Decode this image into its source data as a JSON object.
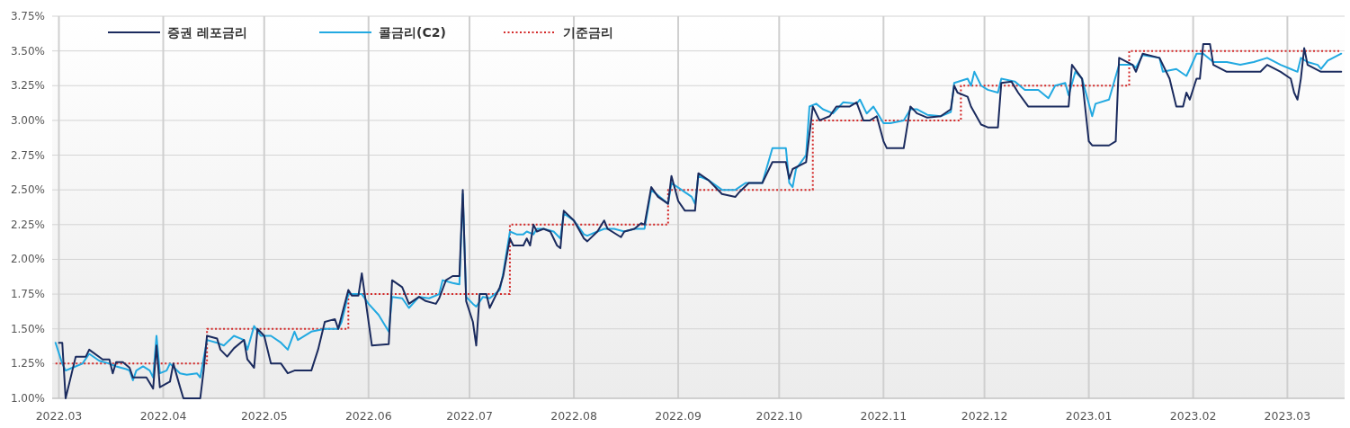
{
  "chart_data": {
    "type": "line",
    "grid": true,
    "legend": "top left",
    "xlim": [
      "2022-02-27",
      "2023-03-18"
    ],
    "ylim": [
      1,
      3.75
    ],
    "xticks": [
      {
        "value": "2022-03-01",
        "label": "2022.03"
      },
      {
        "value": "2022-04-01",
        "label": "2022.04"
      },
      {
        "value": "2022-05-01",
        "label": "2022.05"
      },
      {
        "value": "2022-06-01",
        "label": "2022.06"
      },
      {
        "value": "2022-07-01",
        "label": "2022.07"
      },
      {
        "value": "2022-08-01",
        "label": "2022.08"
      },
      {
        "value": "2022-09-01",
        "label": "2022.09"
      },
      {
        "value": "2022-10-01",
        "label": "2022.10"
      },
      {
        "value": "2022-11-01",
        "label": "2022.11"
      },
      {
        "value": "2022-12-01",
        "label": "2022.12"
      },
      {
        "value": "2023-01-01",
        "label": "2023.01"
      },
      {
        "value": "2023-02-01",
        "label": "2023.02"
      },
      {
        "value": "2023-03-01",
        "label": "2023.03"
      }
    ],
    "yticks": [
      {
        "value": 1,
        "label": "1.00%"
      },
      {
        "value": 1.25,
        "label": "1.25%"
      },
      {
        "value": 1.5,
        "label": "1.50%"
      },
      {
        "value": 1.75,
        "label": "1.75%"
      },
      {
        "value": 2,
        "label": "2.00%"
      },
      {
        "value": 2.25,
        "label": "2.25%"
      },
      {
        "value": 2.5,
        "label": "2.50%"
      },
      {
        "value": 2.75,
        "label": "2.75%"
      },
      {
        "value": 3,
        "label": "3.00%"
      },
      {
        "value": 3.25,
        "label": "3.25%"
      },
      {
        "value": 3.5,
        "label": "3.50%"
      },
      {
        "value": 3.75,
        "label": "3.75%"
      }
    ],
    "series": [
      {
        "name": "증권 레포금리",
        "color": "#1b2b5e",
        "line_style": "solid",
        "x": [
          "2022-03-01",
          "2022-03-02",
          "2022-03-03",
          "2022-03-06",
          "2022-03-09",
          "2022-03-10",
          "2022-03-14",
          "2022-03-16",
          "2022-03-17",
          "2022-03-18",
          "2022-03-20",
          "2022-03-22",
          "2022-03-23",
          "2022-03-27",
          "2022-03-29",
          "2022-03-30",
          "2022-03-31",
          "2022-04-03",
          "2022-04-04",
          "2022-04-06",
          "2022-04-07",
          "2022-04-12",
          "2022-04-13",
          "2022-04-14",
          "2022-04-17",
          "2022-04-18",
          "2022-04-20",
          "2022-04-22",
          "2022-04-25",
          "2022-04-26",
          "2022-04-28",
          "2022-04-29",
          "2022-05-01",
          "2022-05-03",
          "2022-05-06",
          "2022-05-08",
          "2022-05-10",
          "2022-05-15",
          "2022-05-17",
          "2022-05-19",
          "2022-05-22",
          "2022-05-23",
          "2022-05-26",
          "2022-05-27",
          "2022-05-29",
          "2022-05-30",
          "2022-06-02",
          "2022-06-07",
          "2022-06-08",
          "2022-06-11",
          "2022-06-13",
          "2022-06-16",
          "2022-06-18",
          "2022-06-21",
          "2022-06-22",
          "2022-06-24",
          "2022-06-26",
          "2022-06-28",
          "2022-06-29",
          "2022-06-30",
          "2022-07-02",
          "2022-07-03",
          "2022-07-04",
          "2022-07-06",
          "2022-07-07",
          "2022-07-10",
          "2022-07-11",
          "2022-07-13",
          "2022-07-14",
          "2022-07-17",
          "2022-07-18",
          "2022-07-19",
          "2022-07-20",
          "2022-07-21",
          "2022-07-23",
          "2022-07-25",
          "2022-07-27",
          "2022-07-28",
          "2022-07-29",
          "2022-08-01",
          "2022-08-04",
          "2022-08-05",
          "2022-08-08",
          "2022-08-10",
          "2022-08-11",
          "2022-08-15",
          "2022-08-16",
          "2022-08-19",
          "2022-08-21",
          "2022-08-22",
          "2022-08-24",
          "2022-08-26",
          "2022-08-29",
          "2022-08-30",
          "2022-09-01",
          "2022-09-03",
          "2022-09-06",
          "2022-09-07",
          "2022-09-10",
          "2022-09-14",
          "2022-09-18",
          "2022-09-19",
          "2022-09-22",
          "2022-09-26",
          "2022-09-29",
          "2022-10-03",
          "2022-10-04",
          "2022-10-05",
          "2022-10-09",
          "2022-10-11",
          "2022-10-13",
          "2022-10-16",
          "2022-10-18",
          "2022-10-22",
          "2022-10-24",
          "2022-10-26",
          "2022-10-28",
          "2022-10-30",
          "2022-11-01",
          "2022-11-02",
          "2022-11-07",
          "2022-11-09",
          "2022-11-11",
          "2022-11-14",
          "2022-11-18",
          "2022-11-21",
          "2022-11-22",
          "2022-11-23",
          "2022-11-26",
          "2022-11-27",
          "2022-11-30",
          "2022-12-02",
          "2022-12-05",
          "2022-12-06",
          "2022-12-09",
          "2022-12-11",
          "2022-12-14",
          "2022-12-26",
          "2022-12-27",
          "2022-12-30",
          "2023-01-01",
          "2023-01-02",
          "2023-01-07",
          "2023-01-09",
          "2023-01-10",
          "2023-01-14",
          "2023-01-15",
          "2023-01-17",
          "2023-01-22",
          "2023-01-25",
          "2023-01-27",
          "2023-01-29",
          "2023-01-30",
          "2023-01-31",
          "2023-02-02",
          "2023-02-03",
          "2023-02-04",
          "2023-02-06",
          "2023-02-07",
          "2023-02-11",
          "2023-02-21",
          "2023-02-23",
          "2023-02-27",
          "2023-03-02",
          "2023-03-03",
          "2023-03-04",
          "2023-03-05",
          "2023-03-06",
          "2023-03-07",
          "2023-03-11",
          "2023-03-17"
        ],
        "values": [
          1.4,
          1.4,
          1.0,
          1.3,
          1.3,
          1.35,
          1.28,
          1.28,
          1.18,
          1.26,
          1.26,
          1.22,
          1.15,
          1.15,
          1.07,
          1.38,
          1.08,
          1.12,
          1.25,
          1.08,
          1.0,
          1.0,
          1.2,
          1.45,
          1.43,
          1.35,
          1.3,
          1.36,
          1.42,
          1.28,
          1.22,
          1.5,
          1.45,
          1.25,
          1.25,
          1.18,
          1.2,
          1.2,
          1.35,
          1.55,
          1.57,
          1.5,
          1.78,
          1.74,
          1.74,
          1.9,
          1.38,
          1.39,
          1.85,
          1.8,
          1.68,
          1.73,
          1.7,
          1.68,
          1.72,
          1.85,
          1.88,
          1.88,
          2.5,
          1.7,
          1.55,
          1.38,
          1.75,
          1.75,
          1.65,
          1.8,
          1.88,
          2.15,
          2.1,
          2.1,
          2.15,
          2.1,
          2.25,
          2.2,
          2.22,
          2.2,
          2.1,
          2.08,
          2.35,
          2.28,
          2.15,
          2.13,
          2.2,
          2.28,
          2.22,
          2.16,
          2.2,
          2.22,
          2.26,
          2.25,
          2.52,
          2.45,
          2.4,
          2.6,
          2.42,
          2.35,
          2.35,
          2.62,
          2.57,
          2.47,
          2.45,
          2.48,
          2.55,
          2.55,
          2.7,
          2.7,
          2.58,
          2.65,
          2.7,
          3.1,
          3.0,
          3.03,
          3.1,
          3.1,
          3.13,
          3.0,
          3.0,
          3.03,
          2.85,
          2.8,
          2.8,
          3.1,
          3.05,
          3.02,
          3.03,
          3.08,
          3.25,
          3.2,
          3.17,
          3.1,
          2.97,
          2.95,
          2.95,
          3.27,
          3.28,
          3.2,
          3.1,
          3.1,
          3.4,
          3.3,
          2.85,
          2.82,
          2.82,
          2.85,
          3.45,
          3.4,
          3.35,
          3.48,
          3.45,
          3.3,
          3.1,
          3.1,
          3.2,
          3.15,
          3.3,
          3.3,
          3.55,
          3.55,
          3.4,
          3.35,
          3.35,
          3.4,
          3.35,
          3.3,
          3.2,
          3.15,
          3.3,
          3.52,
          3.4,
          3.35,
          3.35
        ]
      },
      {
        "name": "콜금리(C2)",
        "color": "#22a9e1",
        "line_style": "solid",
        "x": [
          "2022-02-28",
          "2022-03-02",
          "2022-03-03",
          "2022-03-05",
          "2022-03-08",
          "2022-03-10",
          "2022-03-13",
          "2022-03-16",
          "2022-03-18",
          "2022-03-21",
          "2022-03-22",
          "2022-03-23",
          "2022-03-24",
          "2022-03-26",
          "2022-03-28",
          "2022-03-29",
          "2022-03-30",
          "2022-03-31",
          "2022-04-02",
          "2022-04-03",
          "2022-04-06",
          "2022-04-08",
          "2022-04-11",
          "2022-04-12",
          "2022-04-14",
          "2022-04-17",
          "2022-04-19",
          "2022-04-22",
          "2022-04-25",
          "2022-04-26",
          "2022-04-28",
          "2022-04-30",
          "2022-05-03",
          "2022-05-06",
          "2022-05-08",
          "2022-05-10",
          "2022-05-11",
          "2022-05-15",
          "2022-05-19",
          "2022-05-23",
          "2022-05-24",
          "2022-05-26",
          "2022-05-27",
          "2022-05-30",
          "2022-06-01",
          "2022-06-04",
          "2022-06-07",
          "2022-06-08",
          "2022-06-11",
          "2022-06-13",
          "2022-06-16",
          "2022-06-19",
          "2022-06-22",
          "2022-06-23",
          "2022-06-26",
          "2022-06-28",
          "2022-06-29",
          "2022-06-30",
          "2022-07-02",
          "2022-07-03",
          "2022-07-05",
          "2022-07-07",
          "2022-07-10",
          "2022-07-11",
          "2022-07-13",
          "2022-07-15",
          "2022-07-17",
          "2022-07-18",
          "2022-07-20",
          "2022-07-21",
          "2022-07-23",
          "2022-07-26",
          "2022-07-28",
          "2022-07-29",
          "2022-08-01",
          "2022-08-04",
          "2022-08-05",
          "2022-08-08",
          "2022-08-10",
          "2022-08-13",
          "2022-08-16",
          "2022-08-19",
          "2022-08-22",
          "2022-08-24",
          "2022-08-26",
          "2022-08-29",
          "2022-08-30",
          "2022-09-02",
          "2022-09-05",
          "2022-09-06",
          "2022-09-07",
          "2022-09-10",
          "2022-09-14",
          "2022-09-18",
          "2022-09-21",
          "2022-09-26",
          "2022-09-29",
          "2022-10-03",
          "2022-10-04",
          "2022-10-05",
          "2022-10-06",
          "2022-10-09",
          "2022-10-10",
          "2022-10-12",
          "2022-10-14",
          "2022-10-17",
          "2022-10-20",
          "2022-10-24",
          "2022-10-25",
          "2022-10-27",
          "2022-10-29",
          "2022-11-01",
          "2022-11-03",
          "2022-11-07",
          "2022-11-09",
          "2022-11-11",
          "2022-11-14",
          "2022-11-18",
          "2022-11-21",
          "2022-11-22",
          "2022-11-26",
          "2022-11-27",
          "2022-11-28",
          "2022-11-30",
          "2022-12-02",
          "2022-12-05",
          "2022-12-06",
          "2022-12-10",
          "2022-12-13",
          "2022-12-17",
          "2022-12-20",
          "2022-12-22",
          "2022-12-25",
          "2022-12-26",
          "2022-12-28",
          "2022-12-30",
          "2023-01-02",
          "2023-01-03",
          "2023-01-07",
          "2023-01-10",
          "2023-01-14",
          "2023-01-15",
          "2023-01-17",
          "2023-01-22",
          "2023-01-23",
          "2023-01-27",
          "2023-01-30",
          "2023-01-31",
          "2023-02-02",
          "2023-02-04",
          "2023-02-07",
          "2023-02-11",
          "2023-02-15",
          "2023-02-19",
          "2023-02-23",
          "2023-02-27",
          "2023-03-02",
          "2023-03-04",
          "2023-03-05",
          "2023-03-07",
          "2023-03-10",
          "2023-03-11",
          "2023-03-13",
          "2023-03-17"
        ],
        "values": [
          1.4,
          1.25,
          1.2,
          1.22,
          1.25,
          1.32,
          1.27,
          1.25,
          1.23,
          1.21,
          1.2,
          1.13,
          1.2,
          1.23,
          1.2,
          1.15,
          1.45,
          1.18,
          1.2,
          1.25,
          1.18,
          1.17,
          1.18,
          1.15,
          1.42,
          1.4,
          1.38,
          1.45,
          1.42,
          1.35,
          1.52,
          1.45,
          1.45,
          1.4,
          1.35,
          1.48,
          1.42,
          1.48,
          1.5,
          1.5,
          1.55,
          1.75,
          1.75,
          1.75,
          1.68,
          1.6,
          1.48,
          1.73,
          1.72,
          1.65,
          1.73,
          1.72,
          1.75,
          1.85,
          1.83,
          1.82,
          2.47,
          1.73,
          1.68,
          1.66,
          1.73,
          1.72,
          1.78,
          1.9,
          2.2,
          2.18,
          2.18,
          2.2,
          2.18,
          2.22,
          2.22,
          2.2,
          2.15,
          2.33,
          2.28,
          2.18,
          2.17,
          2.2,
          2.22,
          2.22,
          2.2,
          2.22,
          2.22,
          2.5,
          2.46,
          2.4,
          2.55,
          2.5,
          2.45,
          2.4,
          2.6,
          2.57,
          2.5,
          2.5,
          2.55,
          2.55,
          2.8,
          2.8,
          2.55,
          2.52,
          2.65,
          2.75,
          3.1,
          3.12,
          3.08,
          3.05,
          3.13,
          3.12,
          3.15,
          3.05,
          3.1,
          2.98,
          2.98,
          3.0,
          3.08,
          3.08,
          3.04,
          3.03,
          3.06,
          3.27,
          3.3,
          3.25,
          3.35,
          3.25,
          3.22,
          3.2,
          3.3,
          3.28,
          3.22,
          3.22,
          3.16,
          3.25,
          3.27,
          3.18,
          3.35,
          3.3,
          3.03,
          3.12,
          3.15,
          3.4,
          3.4,
          3.38,
          3.47,
          3.45,
          3.35,
          3.37,
          3.32,
          3.37,
          3.48,
          3.48,
          3.42,
          3.42,
          3.4,
          3.42,
          3.45,
          3.4,
          3.37,
          3.35,
          3.45,
          3.42,
          3.4,
          3.37,
          3.43,
          3.48
        ]
      },
      {
        "name": "기준금리",
        "type": "step",
        "color": "#d42a2a",
        "line_style": "dotted",
        "x": [
          "2022-02-28",
          "2022-04-14",
          "2022-05-26",
          "2022-07-13",
          "2022-08-29",
          "2022-10-11",
          "2022-11-24",
          "2023-01-13",
          "2023-03-17"
        ],
        "values": [
          1.25,
          1.5,
          1.75,
          2.25,
          2.5,
          3.0,
          3.25,
          3.5,
          3.5
        ]
      }
    ]
  }
}
